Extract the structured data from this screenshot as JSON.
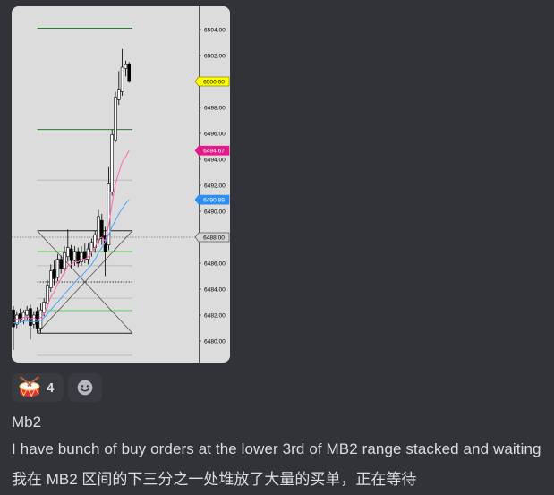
{
  "attachment": {
    "chart": {
      "price_axis": [
        "6504.00",
        "6502.00",
        "6498.00",
        "6496.00",
        "6494.00",
        "6492.00",
        "6490.00",
        "6486.00",
        "6484.00",
        "6482.00",
        "6480.00"
      ],
      "price_tags": [
        {
          "label": "6500.00",
          "fill": "#ffff00",
          "stroke": "#8a8a00",
          "text": "#000000"
        },
        {
          "label": "6494.67",
          "fill": "#e6198a",
          "stroke": "#e6198a",
          "text": "#ffffff"
        },
        {
          "label": "6490.89",
          "fill": "#2b8ef0",
          "stroke": "#2b8ef0",
          "text": "#ffffff"
        },
        {
          "label": "6488.00",
          "fill": "#d6d6d6",
          "stroke": "#555555",
          "text": "#000000"
        }
      ],
      "colors": {
        "background": "#dcdcdc",
        "bull": "#ffffff",
        "bear": "#000000",
        "outline": "#000000",
        "axis": "#555555"
      },
      "levels": [
        {
          "price": 6504.1,
          "from": 7,
          "to": 35,
          "color": "#2a7d2a",
          "style": "solid"
        },
        {
          "price": 6496.3,
          "from": 7,
          "to": 35,
          "color": "#2a7d2a",
          "style": "solid"
        },
        {
          "price": 6492.4,
          "from": 7,
          "to": 35,
          "color": "#b4b4b4",
          "style": "faint"
        },
        {
          "price": 6488.5,
          "from": 7,
          "to": 35,
          "color": "#222222",
          "style": "solid"
        },
        {
          "price": 6488.0,
          "full_width": true,
          "color": "#8a8a8a",
          "style": "dotted"
        },
        {
          "price": 6486.9,
          "from": 7,
          "to": 35,
          "color": "#5fcf5f",
          "style": "solid"
        },
        {
          "price": 6485.8,
          "from": 7,
          "to": 35,
          "color": "#b4b4b4",
          "style": "faint"
        },
        {
          "price": 6484.55,
          "from": 7,
          "to": 35,
          "color": "#333333",
          "style": "dotted"
        },
        {
          "price": 6483.3,
          "from": 7,
          "to": 35,
          "color": "#b4b4b4",
          "style": "faint"
        },
        {
          "price": 6482.35,
          "from": 7,
          "to": 35,
          "color": "#5fcf5f",
          "style": "solid"
        },
        {
          "price": 6480.6,
          "from": 7,
          "to": 35,
          "color": "#222222",
          "style": "solid"
        },
        {
          "price": 6478.9,
          "from": 7,
          "to": 35,
          "color": "#b4b4b4",
          "style": "faint"
        }
      ],
      "diagonals": [
        {
          "from": [
            7,
            6488.5
          ],
          "to": [
            35,
            6480.6
          ],
          "color": "#555555"
        },
        {
          "from": [
            7,
            6480.6
          ],
          "to": [
            35,
            6488.5
          ],
          "color": "#555555"
        }
      ],
      "candles": [
        [
          6482.4,
          6482.7,
          6479.3,
          6481.1
        ],
        [
          6481.3,
          6482.3,
          6481.0,
          6482.0
        ],
        [
          6482.1,
          6482.5,
          6481.4,
          6481.6
        ],
        [
          6481.6,
          6482.4,
          6481.3,
          6482.2
        ],
        [
          6482.0,
          6482.7,
          6481.6,
          6482.4
        ],
        [
          6482.5,
          6482.8,
          6480.1,
          6481.2
        ],
        [
          6481.3,
          6482.3,
          6481.0,
          6482.0
        ],
        [
          6482.3,
          6482.6,
          6480.6,
          6481.0
        ],
        [
          6481.0,
          6482.9,
          6480.6,
          6482.4
        ],
        [
          6482.2,
          6483.3,
          6481.9,
          6483.0
        ],
        [
          6482.9,
          6484.7,
          6482.6,
          6484.3
        ],
        [
          6484.1,
          6485.9,
          6483.8,
          6485.4
        ],
        [
          6485.5,
          6486.2,
          6484.3,
          6484.8
        ],
        [
          6484.9,
          6486.7,
          6484.6,
          6486.3
        ],
        [
          6486.3,
          6486.6,
          6485.2,
          6485.6
        ],
        [
          6485.6,
          6487.3,
          6485.2,
          6486.8
        ],
        [
          6486.5,
          6488.6,
          6486.1,
          6487.2
        ],
        [
          6487.1,
          6487.4,
          6485.6,
          6486.2
        ],
        [
          6486.2,
          6487.3,
          6485.8,
          6486.9
        ],
        [
          6486.9,
          6487.2,
          6485.7,
          6486.0
        ],
        [
          6486.1,
          6487.3,
          6485.8,
          6486.8
        ],
        [
          6486.9,
          6487.5,
          6486.0,
          6486.3
        ],
        [
          6486.3,
          6487.5,
          6485.9,
          6487.1
        ],
        [
          6486.9,
          6487.9,
          6486.5,
          6487.6
        ],
        [
          6487.2,
          6488.5,
          6486.8,
          6488.2
        ],
        [
          6487.8,
          6490.1,
          6487.5,
          6489.6
        ],
        [
          6489.3,
          6489.8,
          6487.4,
          6487.9
        ],
        [
          6488.1,
          6488.8,
          6485.0,
          6486.9
        ],
        [
          6487.4,
          6493.4,
          6487.0,
          6492.1
        ],
        [
          6491.5,
          6496.3,
          6491.2,
          6495.9
        ],
        [
          6495.5,
          6499.2,
          6495.3,
          6498.8
        ],
        [
          6498.6,
          6500.8,
          6498.2,
          6499.4
        ],
        [
          6499.2,
          6502.5,
          6498.9,
          6501.1
        ],
        [
          6501.0,
          6501.6,
          6500.4,
          6501.3
        ],
        [
          6501.3,
          6501.5,
          6499.9,
          6500.0
        ]
      ],
      "ma_fast": {
        "color": "#ff66b3",
        "values": [
          6481.6,
          6481.7,
          6481.7,
          6481.8,
          6481.9,
          6481.7,
          6481.8,
          6481.6,
          6481.8,
          6482.1,
          6482.7,
          6483.4,
          6483.8,
          6484.4,
          6484.8,
          6485.3,
          6485.8,
          6485.9,
          6486.1,
          6486.1,
          6486.3,
          6486.3,
          6486.5,
          6486.8,
          6487.2,
          6487.9,
          6488.0,
          6487.7,
          6488.9,
          6490.6,
          6492.1,
          6493.0,
          6493.8,
          6494.2,
          6494.67
        ]
      },
      "ma_slow": {
        "color": "#4da3ff",
        "values": [
          6481.4,
          6481.4,
          6481.45,
          6481.5,
          6481.55,
          6481.5,
          6481.5,
          6481.5,
          6481.6,
          6481.8,
          6482.1,
          6482.4,
          6482.7,
          6483.0,
          6483.3,
          6483.6,
          6483.9,
          6484.2,
          6484.5,
          6484.8,
          6485.0,
          6485.3,
          6485.6,
          6485.9,
          6486.3,
          6486.8,
          6487.2,
          6487.6,
          6488.2,
          6488.8,
          6489.3,
          6489.8,
          6490.2,
          6490.6,
          6490.89
        ]
      }
    }
  },
  "reactions": [
    {
      "emoji": "drum-icon",
      "count": "4"
    }
  ],
  "add_reaction": {
    "icon": "smiley-icon"
  },
  "message": {
    "lines": [
      "Mb2",
      "I have bunch of buy orders at the lower 3rd of MB2 range stacked and waiting",
      "我在 MB2 区间的下三分之一处堆放了大量的买单，正在等待"
    ]
  }
}
